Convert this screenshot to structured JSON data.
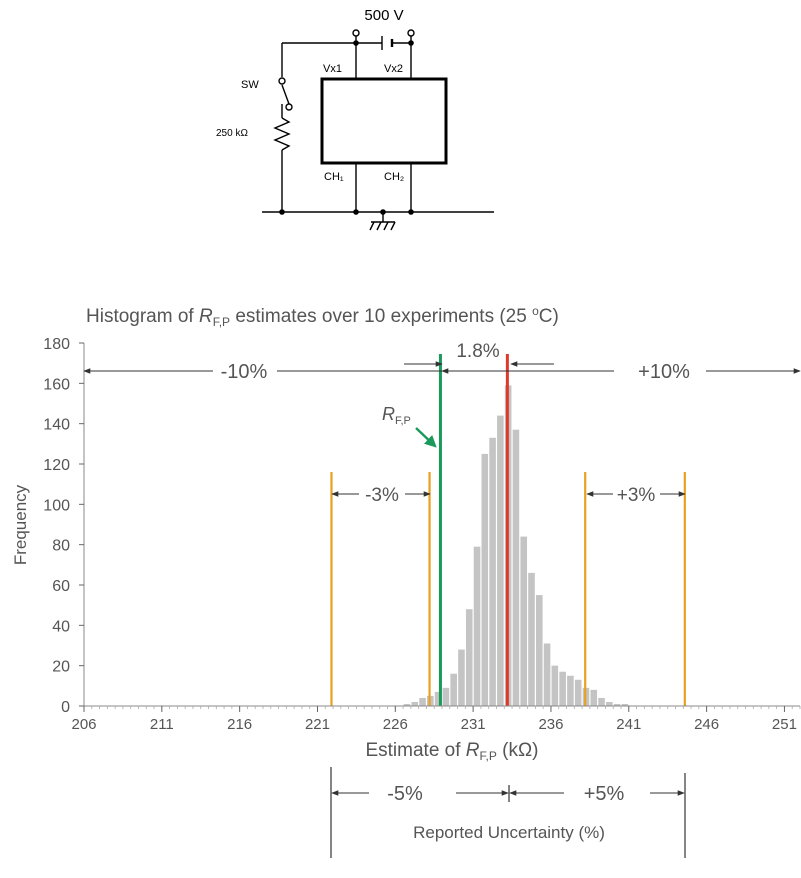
{
  "circuit": {
    "voltage_label": "500 V",
    "vx1_label": "Vx1",
    "vx2_label": "Vx2",
    "switch_label": "SW",
    "resistor_label": "250 kΩ",
    "ch1_label": "CH₁",
    "ch2_label": "CH₂"
  },
  "chart_data": {
    "type": "bar",
    "title_prefix": "Histogram of ",
    "title_symbol": "R",
    "title_subscript": "F,P",
    "title_suffix": " estimates over 10 experiments (25 ",
    "title_degree": "o",
    "title_end": "C)",
    "ylabel": "Frequency",
    "xlabel_prefix": "Estimate of ",
    "xlabel_symbol": "R",
    "xlabel_subscript": "F,P",
    "xlabel_suffix": " (kΩ)",
    "xlim": [
      206,
      252
    ],
    "ylim": [
      0,
      180
    ],
    "x_ticks": [
      206,
      211,
      216,
      221,
      226,
      231,
      236,
      241,
      246,
      251
    ],
    "y_ticks": [
      0,
      20,
      40,
      60,
      80,
      100,
      120,
      140,
      160,
      180
    ],
    "bin_width": 0.5,
    "bins_start": [
      226.5,
      227,
      227.5,
      228,
      228.5,
      229,
      229.5,
      230,
      230.5,
      231,
      231.5,
      232,
      232.5,
      233,
      233.5,
      234,
      234.5,
      235,
      235.5,
      236,
      236.5,
      237,
      237.5,
      238,
      238.5,
      239,
      239.5,
      240,
      240.5
    ],
    "values": [
      1,
      2,
      4,
      5,
      7,
      9,
      16,
      28,
      48,
      79,
      125,
      133,
      144,
      159,
      137,
      84,
      66,
      55,
      31,
      20,
      17,
      15,
      13,
      9,
      8,
      4,
      2,
      1,
      1
    ],
    "series_color": "#c4c4c4",
    "lines": [
      {
        "name": "R_F,P",
        "x": 228.9,
        "color": "#1a9a5a"
      },
      {
        "name": "peak",
        "x": 233.2,
        "color": "#e0392b"
      }
    ],
    "uncertainty_lines_x": [
      221.9,
      228.2,
      238.2,
      244.6
    ],
    "uncertainty_color": "#e8a020",
    "annotations": {
      "minus10": "-10%",
      "plus10": "+10%",
      "gap": "1.8%",
      "minus3": "-3%",
      "plus3": "+3%",
      "minus5": "-5%",
      "plus5": "+5%",
      "arrow_symbol": "R",
      "arrow_subscript": "F,P",
      "reported_uncertainty": "Reported Uncertainty (%)"
    }
  }
}
